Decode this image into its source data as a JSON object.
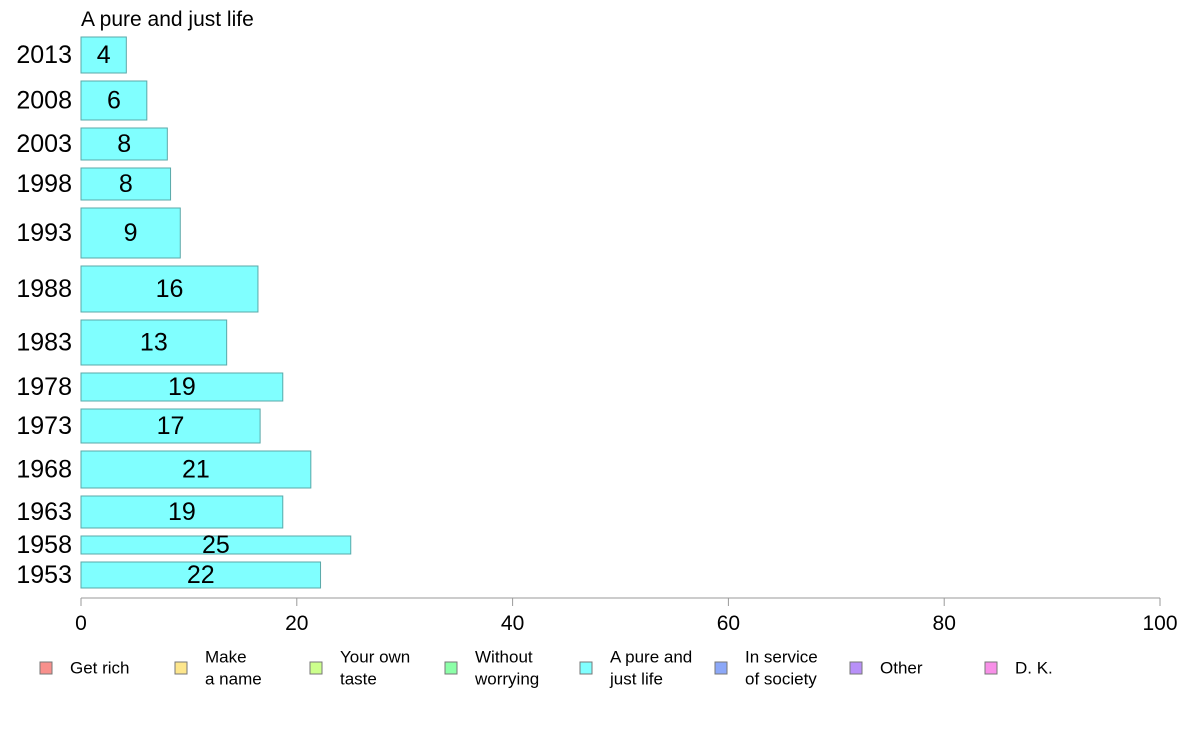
{
  "chart_data": {
    "type": "bar",
    "orientation": "horizontal",
    "title": "A pure and just life",
    "xlabel": "",
    "ylabel": "",
    "xlim": [
      0,
      100
    ],
    "x_ticks": [
      "0",
      "20",
      "40",
      "60",
      "80",
      "100"
    ],
    "grid": false,
    "categories": [
      "2013",
      "2008",
      "2003",
      "1998",
      "1993",
      "1988",
      "1983",
      "1978",
      "1973",
      "1968",
      "1963",
      "1958",
      "1953"
    ],
    "values": [
      4.2,
      6.1,
      8.0,
      8.3,
      9.2,
      16.4,
      13.5,
      18.7,
      16.6,
      21.3,
      18.7,
      25.0,
      22.2
    ],
    "value_labels": [
      "4",
      "6",
      "8",
      "8",
      "9",
      "16",
      "13",
      "19",
      "17",
      "21",
      "19",
      "25",
      "22"
    ],
    "bar_color": "#80ffff",
    "bar_edge_color": "#5aa8a8",
    "legend_position": "bottom",
    "legend": [
      {
        "label": [
          "Get rich"
        ],
        "color": "#f8908c"
      },
      {
        "label": [
          "Make",
          "a name"
        ],
        "color": "#fde68c"
      },
      {
        "label": [
          "Your own",
          "taste"
        ],
        "color": "#ccff8c"
      },
      {
        "label": [
          "Without",
          "worrying"
        ],
        "color": "#8cffa8"
      },
      {
        "label": [
          "A pure and",
          "just life"
        ],
        "color": "#80ffff"
      },
      {
        "label": [
          "In service",
          "of society"
        ],
        "color": "#8ca8f8"
      },
      {
        "label": [
          "Other"
        ],
        "color": "#b890f8"
      },
      {
        "label": [
          "D. K."
        ],
        "color": "#f890e8"
      }
    ]
  }
}
